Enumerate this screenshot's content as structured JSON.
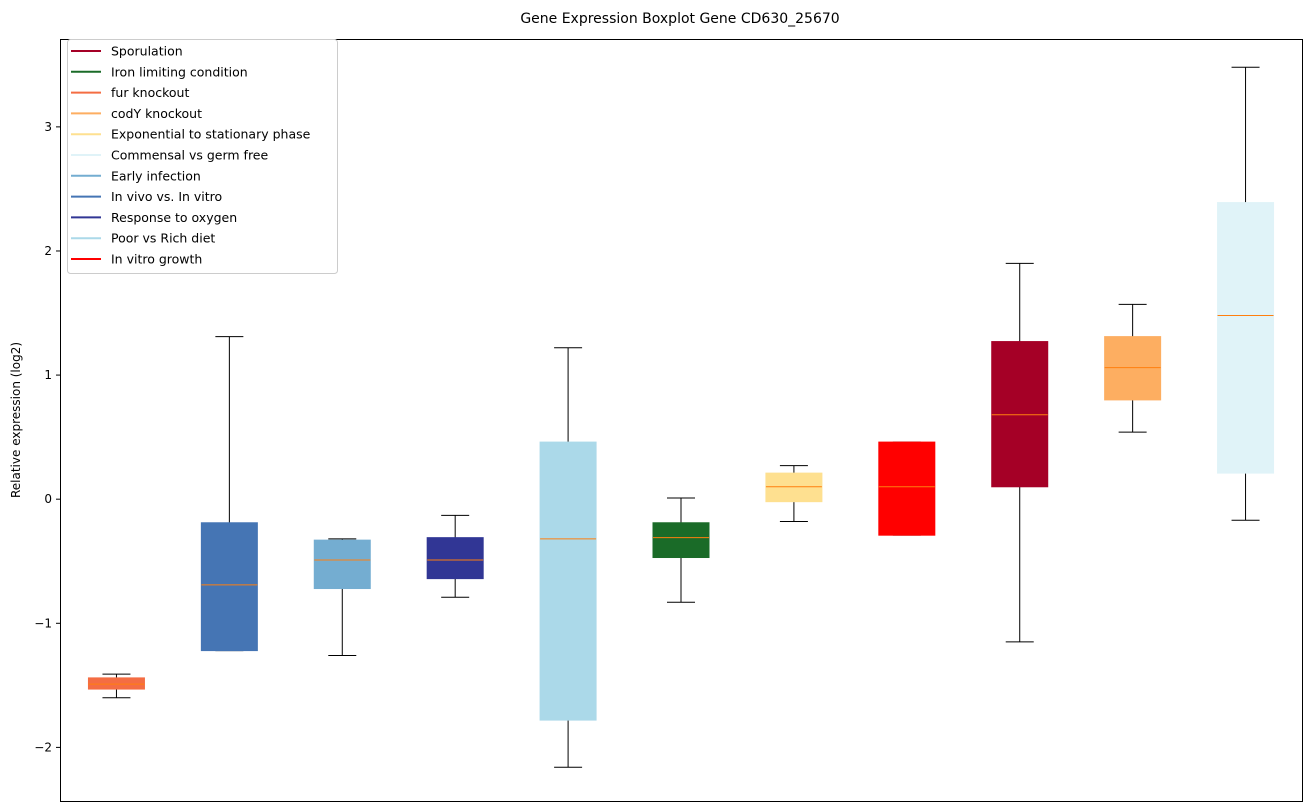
{
  "chart_data": {
    "type": "boxplot",
    "title": "Gene Expression Boxplot Gene CD630_25670",
    "xlabel": "",
    "ylabel": "Relative expression (log2)",
    "ylim": [
      -2.44,
      3.7
    ],
    "yticks": [
      -2,
      -1,
      0,
      1,
      2,
      3
    ],
    "ytick_labels": [
      "−2",
      "−1",
      "0",
      "1",
      "2",
      "3"
    ],
    "grid": false,
    "legend_position": "top-left",
    "median_color": "#ff7f0e",
    "legend": [
      {
        "label": "Sporulation",
        "color": "#a50026"
      },
      {
        "label": "Iron limiting condition",
        "color": "#1a6b28"
      },
      {
        "label": "fur knockout",
        "color": "#f46d43"
      },
      {
        "label": "codY knockout",
        "color": "#fdae61"
      },
      {
        "label": "Exponential to stationary phase",
        "color": "#fee090"
      },
      {
        "label": "Commensal vs germ free",
        "color": "#e0f3f8"
      },
      {
        "label": "Early infection",
        "color": "#74add1"
      },
      {
        "label": "In vivo vs. In vitro",
        "color": "#4575b4"
      },
      {
        "label": "Response to oxygen",
        "color": "#313695"
      },
      {
        "label": "Poor vs Rich diet",
        "color": "#abd9e9"
      },
      {
        "label": "In vitro growth",
        "color": "#ff0000"
      }
    ],
    "series": [
      {
        "name": "fur knockout",
        "color": "#f46d43",
        "whislo": -1.6,
        "q1": -1.53,
        "med": -1.49,
        "q3": -1.44,
        "whishi": -1.41
      },
      {
        "name": "In vivo vs. In vitro",
        "color": "#4575b4",
        "whislo": -1.22,
        "q1": -1.22,
        "med": -0.69,
        "q3": -0.19,
        "whishi": 1.31
      },
      {
        "name": "Early infection",
        "color": "#74add1",
        "whislo": -1.26,
        "q1": -0.72,
        "med": -0.49,
        "q3": -0.33,
        "whishi": -0.32
      },
      {
        "name": "Response to oxygen",
        "color": "#313695",
        "whislo": -0.79,
        "q1": -0.64,
        "med": -0.49,
        "q3": -0.31,
        "whishi": -0.13
      },
      {
        "name": "Poor vs Rich diet",
        "color": "#abd9e9",
        "whislo": -2.16,
        "q1": -1.78,
        "med": -0.32,
        "q3": 0.46,
        "whishi": 1.22
      },
      {
        "name": "Iron limiting condition",
        "color": "#1a6b28",
        "whislo": -0.83,
        "q1": -0.47,
        "med": -0.31,
        "q3": -0.19,
        "whishi": 0.01
      },
      {
        "name": "Exponential to stationary phase",
        "color": "#fee090",
        "whislo": -0.18,
        "q1": -0.02,
        "med": 0.1,
        "q3": 0.21,
        "whishi": 0.27
      },
      {
        "name": "In vitro growth",
        "color": "#ff0000",
        "whislo": -0.29,
        "q1": -0.29,
        "med": 0.1,
        "q3": 0.46,
        "whishi": 0.46
      },
      {
        "name": "Sporulation",
        "color": "#a50026",
        "whislo": -1.15,
        "q1": 0.1,
        "med": 0.68,
        "q3": 1.27,
        "whishi": 1.9
      },
      {
        "name": "codY knockout",
        "color": "#fdae61",
        "whislo": 0.54,
        "q1": 0.8,
        "med": 1.06,
        "q3": 1.31,
        "whishi": 1.57
      },
      {
        "name": "Commensal vs germ free",
        "color": "#e0f3f8",
        "whislo": -0.17,
        "q1": 0.21,
        "med": 1.48,
        "q3": 2.39,
        "whishi": 3.48
      }
    ]
  }
}
